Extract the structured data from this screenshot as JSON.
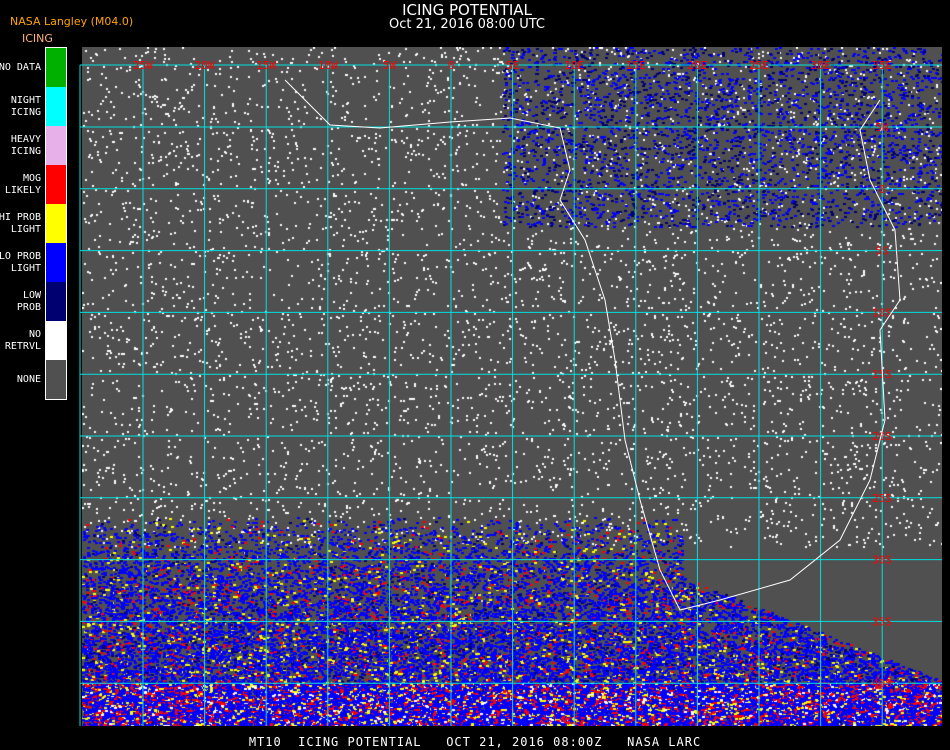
{
  "header": {
    "title": "ICING POTENTIAL",
    "subtitle": "Oct 21, 2016 08:00 UTC",
    "producer": "NASA Langley (M04.0)",
    "product": "ICING"
  },
  "legend": [
    {
      "label": "NO DATA",
      "color": "#00b000"
    },
    {
      "label": "NIGHT\nICING",
      "color": "#00ffff"
    },
    {
      "label": "HEAVY\nICING",
      "color": "#e8b0e8"
    },
    {
      "label": "MOG\nLIKELY",
      "color": "#ff0000"
    },
    {
      "label": "HI PROB\nLIGHT",
      "color": "#ffff00"
    },
    {
      "label": "LO PROB\nLIGHT",
      "color": "#0000ff"
    },
    {
      "label": "LOW\nPROB",
      "color": "#000070"
    },
    {
      "label": "NO\nRETRVL",
      "color": "#ffffff"
    },
    {
      "label": "NONE",
      "color": "#505050"
    }
  ],
  "map": {
    "grid_color": "#00e0e0",
    "label_color": "#ff0000",
    "longitude_labels": [
      "25W",
      "20W",
      "15W",
      "10W",
      "5W",
      "0",
      "5E",
      "10E",
      "15E",
      "20E",
      "25E",
      "30E",
      "35E"
    ],
    "latitude_labels": [
      "5N",
      "0",
      "5S",
      "10S",
      "15S",
      "20S",
      "25S",
      "30S",
      "35S",
      "40S"
    ]
  },
  "footer": {
    "caption": "MT10  ICING POTENTIAL   OCT 21, 2016 08:00Z   NASA LARC"
  }
}
